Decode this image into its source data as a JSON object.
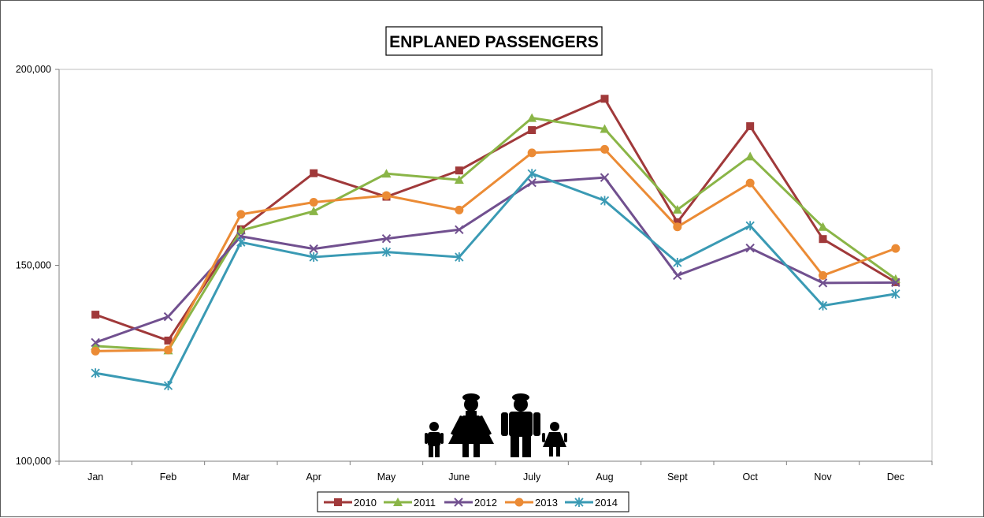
{
  "chart_data": {
    "type": "line",
    "title": "ENPLANED PASSENGERS",
    "xlabel": "",
    "ylabel": "",
    "categories": [
      "Jan",
      "Feb",
      "Mar",
      "Apr",
      "May",
      "June",
      "July",
      "Aug",
      "Sept",
      "Oct",
      "Nov",
      "Dec"
    ],
    "ylim": [
      100000,
      200000
    ],
    "y_ticks": [
      100000,
      150000,
      200000
    ],
    "y_tick_labels": [
      "100,000",
      "150,000",
      "200,000"
    ],
    "grid": false,
    "legend_position": "bottom",
    "series": [
      {
        "name": "2010",
        "color": "#A0393A",
        "marker": "square",
        "values": [
          137400,
          130800,
          159200,
          173500,
          167500,
          174200,
          184500,
          192500,
          161000,
          185500,
          156700,
          145700
        ]
      },
      {
        "name": "2011",
        "color": "#8AB547",
        "marker": "triangle",
        "values": [
          129400,
          128300,
          158900,
          163800,
          173400,
          171800,
          187600,
          184800,
          164200,
          177800,
          159800,
          146500
        ]
      },
      {
        "name": "2012",
        "color": "#71508F",
        "marker": "x",
        "values": [
          130300,
          136900,
          157400,
          154200,
          156800,
          159100,
          171100,
          172400,
          147400,
          154400,
          145500,
          145600
        ]
      },
      {
        "name": "2013",
        "color": "#EB8B35",
        "marker": "circle",
        "values": [
          128100,
          128400,
          163000,
          166100,
          167800,
          164100,
          178700,
          179600,
          159800,
          171000,
          147400,
          154300
        ]
      },
      {
        "name": "2014",
        "color": "#3A9AB4",
        "marker": "star",
        "values": [
          122500,
          119300,
          155900,
          152100,
          153400,
          152100,
          173400,
          166500,
          150700,
          160100,
          139700,
          142700
        ]
      }
    ]
  },
  "icons": {
    "family": "family-silhouette-icon"
  }
}
